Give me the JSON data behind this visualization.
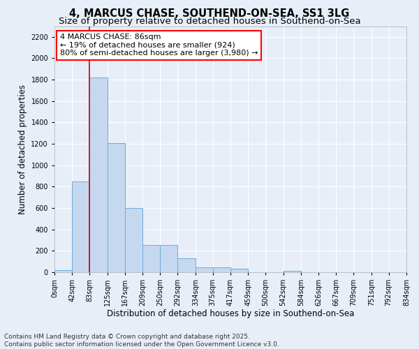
{
  "title_line1": "4, MARCUS CHASE, SOUTHEND-ON-SEA, SS1 3LG",
  "title_line2": "Size of property relative to detached houses in Southend-on-Sea",
  "xlabel": "Distribution of detached houses by size in Southend-on-Sea",
  "ylabel": "Number of detached properties",
  "bar_color": "#c5d8f0",
  "bar_edge_color": "#6baed6",
  "background_color": "#e8eef8",
  "grid_color": "#ffffff",
  "annotation_text": "4 MARCUS CHASE: 86sqm\n← 19% of detached houses are smaller (924)\n80% of semi-detached houses are larger (3,980) →",
  "vline_x": 83,
  "vline_color": "#cc0000",
  "ylim": [
    0,
    2300
  ],
  "yticks": [
    0,
    200,
    400,
    600,
    800,
    1000,
    1200,
    1400,
    1600,
    1800,
    2000,
    2200
  ],
  "bin_edges": [
    0,
    42,
    83,
    125,
    167,
    209,
    250,
    292,
    334,
    375,
    417,
    459,
    500,
    542,
    584,
    626,
    667,
    709,
    751,
    792,
    834
  ],
  "bar_heights": [
    20,
    845,
    1820,
    1210,
    600,
    255,
    255,
    130,
    45,
    45,
    30,
    0,
    0,
    15,
    0,
    0,
    0,
    0,
    0,
    0
  ],
  "footer_text": "Contains HM Land Registry data © Crown copyright and database right 2025.\nContains public sector information licensed under the Open Government Licence v3.0.",
  "title_fontsize": 10.5,
  "subtitle_fontsize": 9.5,
  "axis_label_fontsize": 8.5,
  "tick_fontsize": 7,
  "annotation_fontsize": 8,
  "footer_fontsize": 6.5
}
